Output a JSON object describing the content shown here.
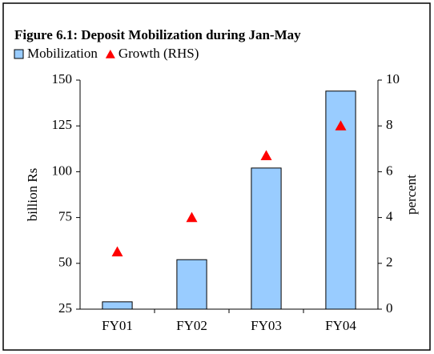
{
  "chart_data": {
    "type": "bar",
    "title": "Figure 6.1: Deposit Mobilization during Jan-May",
    "categories": [
      "FY01",
      "FY02",
      "FY03",
      "FY04"
    ],
    "series": [
      {
        "name": "Mobilization",
        "color": "#99ccff",
        "values": [
          29,
          52,
          102,
          144
        ]
      },
      {
        "name": "Growth (RHS)",
        "color": "#ff0000",
        "axis": "y2",
        "marker": "triangle",
        "values": [
          2.5,
          4.0,
          6.7,
          8.0
        ]
      }
    ],
    "ylabel": "billion Rs",
    "y2label": "percent",
    "ylim": [
      25,
      150
    ],
    "yticks": [
      25,
      50,
      75,
      100,
      125,
      150
    ],
    "y2lim": [
      0,
      10
    ],
    "y2ticks": [
      0,
      2,
      4,
      6,
      8,
      10
    ],
    "grid": false,
    "legend": "top-left"
  }
}
